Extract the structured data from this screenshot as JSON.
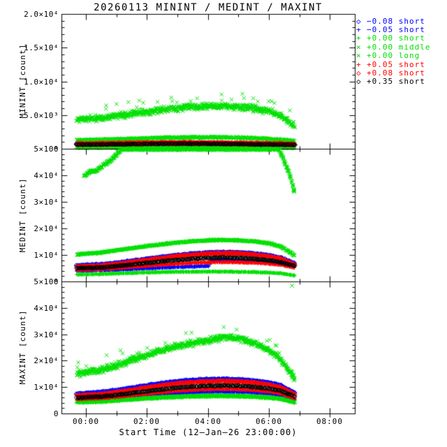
{
  "title": "20260113 MININT / MEDINT / MAXINT",
  "colors": {
    "blue": "#0000ff",
    "green": "#00e000",
    "red": "#ff0000",
    "black": "#000000"
  },
  "legend": {
    "items": [
      {
        "symbol": "◇",
        "marker": "diamond",
        "color": "blue",
        "label": "−0.08 short"
      },
      {
        "symbol": "+",
        "marker": "plus",
        "color": "blue",
        "label": "−0.05 short"
      },
      {
        "symbol": "+",
        "marker": "plus",
        "color": "green",
        "label": "+0.00 short"
      },
      {
        "symbol": "×",
        "marker": "cross",
        "color": "green",
        "label": "+0.00 middle"
      },
      {
        "symbol": "×",
        "marker": "cross",
        "color": "green",
        "label": "+0.00 long"
      },
      {
        "symbol": "+",
        "marker": "plus",
        "color": "red",
        "label": "+0.05 short"
      },
      {
        "symbol": "◇",
        "marker": "diamond",
        "color": "red",
        "label": "+0.08 short"
      },
      {
        "symbol": "◇",
        "marker": "diamond",
        "color": "black",
        "label": "+0.35 short"
      }
    ]
  },
  "xaxis": {
    "title": "Start Time (12–Jan–26 23:00:00)",
    "ticks": [
      "00:00",
      "02:00",
      "04:00",
      "06:00",
      "08:00"
    ],
    "tick_hours": [
      0,
      2,
      4,
      6,
      8
    ],
    "minor_hours": [
      1,
      3,
      5,
      7
    ],
    "range_hours": [
      -0.8,
      8.82
    ]
  },
  "chart_data": [
    {
      "type": "scatter",
      "ylabel": "MININT [count]",
      "ylim": [
        0,
        20000
      ],
      "yticks": [
        {
          "v": 0,
          "label": "0"
        },
        {
          "v": 5000,
          "label": "5.0×10³"
        },
        {
          "v": 10000,
          "label": "1.0×10⁴"
        },
        {
          "v": 15000,
          "label": "1.5×10⁴"
        },
        {
          "v": 20000,
          "label": "2.0×10⁴"
        }
      ],
      "minor_step": 1000,
      "anchors_x": [
        -0.3,
        0.5,
        1,
        1.5,
        2,
        2.5,
        3,
        3.5,
        4,
        4.5,
        5,
        5.5,
        6,
        6.4,
        6.85
      ],
      "series": [
        {
          "name": "−0.08 short",
          "color": "blue",
          "marker": "diamond",
          "n": 420,
          "spread": 120,
          "y": [
            650,
            680,
            700,
            720,
            740,
            755,
            765,
            760,
            750,
            735,
            715,
            690,
            660,
            630,
            590
          ]
        },
        {
          "name": "−0.05 short",
          "color": "blue",
          "marker": "plus",
          "n": 420,
          "spread": 100,
          "y": [
            480,
            500,
            520,
            545,
            565,
            580,
            590,
            585,
            575,
            560,
            545,
            525,
            505,
            480,
            450
          ]
        },
        {
          "name": "+0.00 short",
          "color": "green",
          "marker": "plus",
          "n": 450,
          "spread": 95,
          "y": [
            130,
            140,
            150,
            158,
            165,
            170,
            174,
            172,
            168,
            162,
            154,
            144,
            134,
            124,
            110
          ]
        },
        {
          "name": "+0.00 middle",
          "color": "green",
          "marker": "cross",
          "n": 600,
          "spread": 190,
          "y": [
            1280,
            1340,
            1410,
            1480,
            1550,
            1610,
            1660,
            1690,
            1700,
            1685,
            1645,
            1580,
            1470,
            1340,
            1130
          ]
        },
        {
          "name": "+0.00 long",
          "color": "green",
          "marker": "cross",
          "n": 800,
          "spread": 680,
          "spikes": true,
          "y": [
            4300,
            4550,
            4850,
            5150,
            5450,
            5750,
            6000,
            6180,
            6300,
            6350,
            6250,
            6000,
            5600,
            4850,
            3350
          ]
        },
        {
          "name": "+0.05 short",
          "color": "red",
          "marker": "plus",
          "n": 420,
          "spread": 115,
          "y": [
            560,
            590,
            620,
            650,
            680,
            700,
            710,
            705,
            695,
            680,
            660,
            630,
            600,
            570,
            530
          ]
        },
        {
          "name": "+0.08 short",
          "color": "red",
          "marker": "diamond",
          "n": 420,
          "spread": 135,
          "y": [
            760,
            800,
            840,
            875,
            905,
            925,
            935,
            930,
            920,
            900,
            870,
            840,
            800,
            760,
            710
          ]
        },
        {
          "name": "+0.35 short",
          "color": "black",
          "marker": "diamond",
          "n": 260,
          "spread": 95,
          "y": [
            610,
            640,
            670,
            700,
            730,
            750,
            760,
            755,
            745,
            730,
            705,
            675,
            645,
            615,
            575
          ]
        }
      ]
    },
    {
      "type": "scatter",
      "ylabel": "MEDINT [count]",
      "ylim": [
        0,
        50000
      ],
      "yticks": [
        {
          "v": 0,
          "label": "0"
        },
        {
          "v": 10000,
          "label": "1×10⁴"
        },
        {
          "v": 20000,
          "label": "2×10⁴"
        },
        {
          "v": 30000,
          "label": "3×10⁴"
        },
        {
          "v": 40000,
          "label": "4×10⁴"
        },
        {
          "v": 50000,
          "label": "5×10⁴"
        }
      ],
      "minor_step": 2000,
      "anchors_x": [
        -0.3,
        0.5,
        1,
        1.5,
        2,
        2.5,
        3,
        3.5,
        4,
        4.5,
        5,
        5.5,
        6,
        6.4,
        6.85
      ],
      "series": [
        {
          "name": "−0.08 short",
          "color": "blue",
          "marker": "diamond",
          "n": 500,
          "spread": 380,
          "y": [
            6000,
            6400,
            7000,
            7700,
            8500,
            9250,
            9900,
            10450,
            10850,
            11050,
            10950,
            10500,
            9800,
            8900,
            6800
          ]
        },
        {
          "name": "−0.05 short",
          "color": "blue",
          "marker": "plus",
          "n": 500,
          "spread": 260,
          "x": [
            -0.3,
            1,
            2,
            3,
            3.6,
            4.05,
            4.1,
            4.5,
            5,
            5.5,
            6,
            6.4,
            6.85
          ],
          "y": [
            4000,
            4400,
            4950,
            5450,
            5650,
            5800,
            7900,
            7950,
            7850,
            7600,
            7200,
            6750,
            5600
          ]
        },
        {
          "name": "+0.00 short",
          "color": "green",
          "marker": "plus",
          "n": 500,
          "spread": 230,
          "y": [
            2600,
            2800,
            3000,
            3200,
            3380,
            3520,
            3620,
            3690,
            3720,
            3700,
            3640,
            3520,
            3340,
            3050,
            2250
          ]
        },
        {
          "name": "+0.00 middle",
          "color": "green",
          "marker": "cross",
          "n": 650,
          "spread": 420,
          "y": [
            10200,
            10900,
            11700,
            12500,
            13300,
            14050,
            14650,
            15150,
            15450,
            15600,
            15500,
            15150,
            14400,
            13200,
            9700
          ]
        },
        {
          "name": "+0.00 long",
          "color": "green",
          "marker": "cross",
          "n": 850,
          "spread": 950,
          "x": [
            -0.05,
            0.15,
            0.35,
            0.55,
            0.8,
            1.0,
            1.15,
            1.35,
            6.05,
            6.3,
            6.5,
            6.7,
            6.85
          ],
          "y": [
            39800,
            41300,
            41700,
            43600,
            45600,
            47600,
            49600,
            52000,
            52000,
            50800,
            45500,
            39800,
            33300
          ]
        },
        {
          "name": "+0.05 short",
          "color": "red",
          "marker": "plus",
          "n": 500,
          "spread": 290,
          "y": [
            4400,
            4650,
            5050,
            5450,
            5900,
            6350,
            6700,
            7000,
            7200,
            7300,
            7250,
            7050,
            6700,
            6250,
            5150
          ]
        },
        {
          "name": "+0.08 short",
          "color": "red",
          "marker": "diamond",
          "n": 500,
          "spread": 340,
          "y": [
            5600,
            5950,
            6550,
            7250,
            8050,
            8800,
            9500,
            10050,
            10450,
            10650,
            10550,
            10150,
            9450,
            8550,
            6450
          ]
        },
        {
          "name": "+0.35 short",
          "color": "black",
          "marker": "diamond",
          "n": 300,
          "spread": 270,
          "y": [
            5000,
            5250,
            5750,
            6350,
            6950,
            7550,
            8100,
            8550,
            8850,
            9000,
            8900,
            8550,
            7950,
            7250,
            5850
          ]
        }
      ]
    },
    {
      "type": "scatter",
      "ylabel": "MAXINT [count]",
      "ylim": [
        0,
        50000
      ],
      "yticks": [
        {
          "v": 0,
          "label": "0"
        },
        {
          "v": 10000,
          "label": "1×10⁴"
        },
        {
          "v": 20000,
          "label": "2×10⁴"
        },
        {
          "v": 30000,
          "label": "3×10⁴"
        },
        {
          "v": 40000,
          "label": "4×10⁴"
        },
        {
          "v": 50000,
          "label": "5×10⁴"
        }
      ],
      "minor_step": 2000,
      "anchors_x": [
        -0.3,
        0.5,
        1,
        1.5,
        2,
        2.5,
        3,
        3.5,
        4,
        4.5,
        5,
        5.5,
        6,
        6.4,
        6.85
      ],
      "series": [
        {
          "name": "−0.08 short",
          "color": "blue",
          "marker": "diamond",
          "n": 520,
          "spread": 420,
          "y": [
            7500,
            8000,
            8800,
            9700,
            10600,
            11450,
            12150,
            12650,
            12950,
            13050,
            12900,
            12450,
            11650,
            10550,
            7800
          ]
        },
        {
          "name": "−0.05 short",
          "color": "blue",
          "marker": "plus",
          "n": 500,
          "spread": 320,
          "y": [
            5000,
            5300,
            5750,
            6250,
            6750,
            7250,
            7650,
            7950,
            8150,
            8250,
            8150,
            7900,
            7450,
            6850,
            5200
          ]
        },
        {
          "name": "+0.00 short",
          "color": "green",
          "marker": "plus",
          "n": 550,
          "spread": 340,
          "y": [
            4100,
            4400,
            4800,
            5200,
            5600,
            5900,
            6150,
            6350,
            6450,
            6500,
            6400,
            6200,
            5850,
            5400,
            4000
          ]
        },
        {
          "name": "+0.00 middle",
          "color": "green",
          "marker": "cross",
          "n": 450,
          "spread": 300,
          "y": [
            4400,
            4700,
            5100,
            5500,
            5900,
            6200,
            6450,
            6650,
            6750,
            6800,
            6700,
            6500,
            6150,
            5700,
            4300
          ]
        },
        {
          "name": "+0.00 long",
          "color": "green",
          "marker": "cross",
          "n": 850,
          "spread": 1700,
          "spikes": true,
          "y": [
            15000,
            16500,
            18200,
            20100,
            22100,
            24000,
            25600,
            26700,
            27600,
            29000,
            28400,
            26800,
            24000,
            20200,
            13200
          ]
        },
        {
          "name": "+0.05 short",
          "color": "red",
          "marker": "plus",
          "n": 500,
          "spread": 310,
          "y": [
            5400,
            5750,
            6250,
            6850,
            7450,
            8050,
            8550,
            8900,
            9150,
            9250,
            9150,
            8850,
            8300,
            7600,
            5700
          ]
        },
        {
          "name": "+0.08 short",
          "color": "red",
          "marker": "diamond",
          "n": 500,
          "spread": 360,
          "y": [
            6800,
            7300,
            8050,
            8900,
            9800,
            10650,
            11350,
            11850,
            12150,
            12250,
            12100,
            11700,
            10900,
            9850,
            7200
          ]
        },
        {
          "name": "+0.35 short",
          "color": "black",
          "marker": "diamond",
          "n": 300,
          "spread": 290,
          "y": [
            6000,
            6400,
            7000,
            7700,
            8400,
            9100,
            9700,
            10150,
            10450,
            10550,
            10450,
            10100,
            9450,
            8550,
            6400
          ]
        },
        {
          "name": "+0.00 long outlier",
          "color": "green",
          "marker": "cross",
          "n": 1,
          "spread": 0,
          "x": [
            6.76
          ],
          "y": [
            48400
          ]
        }
      ]
    }
  ]
}
